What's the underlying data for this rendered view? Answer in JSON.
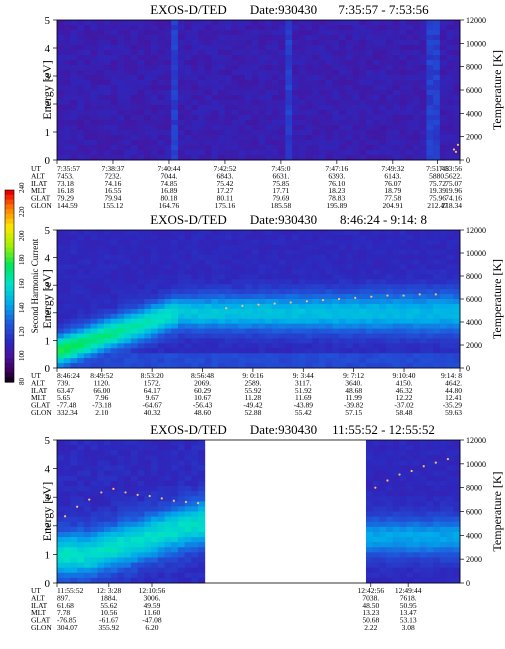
{
  "colorbar": {
    "label": "Second Harmonic Current",
    "ticks": [
      "240",
      "220",
      "200",
      "180",
      "160",
      "140",
      "120",
      "100",
      "80"
    ]
  },
  "chart_data": [
    {
      "type": "heatmap",
      "title": "EXOS-D/TED",
      "date_label": "Date:930430",
      "time_range": "7:35:57 - 7:53:56",
      "ylabel": "Energy [eV]",
      "ylabel_right": "Temperature [K]",
      "yticks": [
        "0",
        "1",
        "2",
        "3",
        "4",
        "5"
      ],
      "yticks_right": [
        "0",
        "2000",
        "4000",
        "6000",
        "8000",
        "10000",
        "12000"
      ],
      "ylim": [
        0,
        5
      ],
      "ylim_right": [
        0,
        12000
      ],
      "intensity_profile": "low",
      "data_gap": null,
      "temperature_points": [
        {
          "x": 0.985,
          "y": 900
        },
        {
          "x": 0.99,
          "y": 700
        },
        {
          "x": 0.995,
          "y": 1300
        }
      ],
      "table": {
        "row_labels": [
          "UT",
          "ALT",
          "ILAT",
          "MLT",
          "GLAT",
          "GLON"
        ],
        "columns": [
          {
            "x": 0.0,
            "values": [
              "7:35:57",
              "7453.",
              "73.18",
              "16.18",
              "79.29",
              "144.59"
            ]
          },
          {
            "x": 0.1389,
            "values": [
              "7:38:37",
              "7232.",
              "74.16",
              "16.55",
              "79.94",
              "155.12"
            ]
          },
          {
            "x": 0.2778,
            "values": [
              "7:40:44",
              "7044.",
              "74.85",
              "16.89",
              "80.18",
              "164.76"
            ]
          },
          {
            "x": 0.4167,
            "values": [
              "7:42:52",
              "6843.",
              "75.42",
              "17.27",
              "80.11",
              "175.16"
            ]
          },
          {
            "x": 0.5556,
            "values": [
              "7:45:0",
              "6631.",
              "75.85",
              "17.71",
              "79.69",
              "185.58"
            ]
          },
          {
            "x": 0.6944,
            "values": [
              "7:47:16",
              "6393.",
              "76.10",
              "18.23",
              "78.83",
              "195.89"
            ]
          },
          {
            "x": 0.8333,
            "values": [
              "7:49:32",
              "6143.",
              "76.07",
              "18.79",
              "77.58",
              "204.91"
            ]
          },
          {
            "x": 0.9444,
            "values": [
              "7:51:48",
              "5880.",
              "75.72",
              "19.39",
              "75.96",
              "212.47"
            ]
          },
          {
            "x": 1.0,
            "values": [
              "7:53:56",
              "5622.",
              "75.07",
              "19.96",
              "74.16",
              "218.34"
            ]
          }
        ]
      }
    },
    {
      "type": "heatmap",
      "title": "EXOS-D/TED",
      "date_label": "Date:930430",
      "time_range": "8:46:24 - 9:14: 8",
      "ylabel": "Energy [eV]",
      "ylabel_right": "Temperature [K]",
      "yticks": [
        "0",
        "1",
        "2",
        "3",
        "4",
        "5"
      ],
      "yticks_right": [
        "0",
        "2000",
        "4000",
        "6000",
        "8000",
        "10000",
        "12000"
      ],
      "ylim": [
        0,
        5
      ],
      "ylim_right": [
        0,
        12000
      ],
      "intensity_profile": "band",
      "data_gap": null,
      "temperature_points": [
        {
          "x": 0.42,
          "y": 5200
        },
        {
          "x": 0.46,
          "y": 5400
        },
        {
          "x": 0.5,
          "y": 5500
        },
        {
          "x": 0.54,
          "y": 5600
        },
        {
          "x": 0.58,
          "y": 5700
        },
        {
          "x": 0.62,
          "y": 5800
        },
        {
          "x": 0.66,
          "y": 5900
        },
        {
          "x": 0.7,
          "y": 6000
        },
        {
          "x": 0.74,
          "y": 6100
        },
        {
          "x": 0.78,
          "y": 6200
        },
        {
          "x": 0.82,
          "y": 6300
        },
        {
          "x": 0.86,
          "y": 6300
        },
        {
          "x": 0.9,
          "y": 6400
        },
        {
          "x": 0.94,
          "y": 6400
        }
      ],
      "table": {
        "row_labels": [
          "UT",
          "ALT",
          "ILAT",
          "MLT",
          "GLAT",
          "GLON"
        ],
        "columns": [
          {
            "x": 0.0,
            "values": [
              "8:46:24",
              "739.",
              "63.47",
              "5.65",
              "-77.48",
              "332.34"
            ]
          },
          {
            "x": 0.1111,
            "values": [
              "8:49:52",
              "1120.",
              "66.00",
              "7.96",
              "-73.18",
              "2.10"
            ]
          },
          {
            "x": 0.2361,
            "values": [
              "8:53:20",
              "1572.",
              "64.17",
              "9.67",
              "-64.67",
              "40.32"
            ]
          },
          {
            "x": 0.3611,
            "values": [
              "8:56:48",
              "2069.",
              "60.29",
              "10.67",
              "-56.43",
              "48.60"
            ]
          },
          {
            "x": 0.4861,
            "values": [
              "9: 0:16",
              "2589.",
              "55.92",
              "11.28",
              "-49.42",
              "52.88"
            ]
          },
          {
            "x": 0.6111,
            "values": [
              "9: 3:44",
              "3117.",
              "51.92",
              "11.69",
              "-43.89",
              "55.42"
            ]
          },
          {
            "x": 0.7361,
            "values": [
              "9: 7:12",
              "3640.",
              "48.68",
              "11.99",
              "-39.82",
              "57.15"
            ]
          },
          {
            "x": 0.8611,
            "values": [
              "9:10:40",
              "4150.",
              "46.32",
              "12.22",
              "-37.02",
              "58.48"
            ]
          },
          {
            "x": 1.0,
            "values": [
              "9:14: 8",
              "4642.",
              "44.80",
              "12.41",
              "-35.29",
              "59.63"
            ]
          }
        ]
      }
    },
    {
      "type": "heatmap",
      "title": "EXOS-D/TED",
      "date_label": "Date:930430",
      "time_range": "11:55:52 - 12:55:52",
      "ylabel": "Energy [eV]",
      "ylabel_right": "Temperature [K]",
      "yticks": [
        "0",
        "1",
        "2",
        "3",
        "4",
        "5"
      ],
      "yticks_right": [
        "0",
        "2000",
        "4000",
        "6000",
        "8000",
        "10000",
        "12000"
      ],
      "ylim": [
        0,
        5
      ],
      "ylim_right": [
        0,
        12000
      ],
      "intensity_profile": "band3",
      "data_gap": [
        0.365,
        0.775
      ],
      "temperature_points": [
        {
          "x": 0.02,
          "y": 5600
        },
        {
          "x": 0.05,
          "y": 6400
        },
        {
          "x": 0.08,
          "y": 7000
        },
        {
          "x": 0.11,
          "y": 7600
        },
        {
          "x": 0.14,
          "y": 7900
        },
        {
          "x": 0.17,
          "y": 7600
        },
        {
          "x": 0.2,
          "y": 7400
        },
        {
          "x": 0.23,
          "y": 7300
        },
        {
          "x": 0.26,
          "y": 7100
        },
        {
          "x": 0.29,
          "y": 6900
        },
        {
          "x": 0.32,
          "y": 6800
        },
        {
          "x": 0.35,
          "y": 6700
        },
        {
          "x": 0.79,
          "y": 8000
        },
        {
          "x": 0.82,
          "y": 8600
        },
        {
          "x": 0.85,
          "y": 9100
        },
        {
          "x": 0.88,
          "y": 9400
        },
        {
          "x": 0.91,
          "y": 9800
        },
        {
          "x": 0.94,
          "y": 10100
        },
        {
          "x": 0.97,
          "y": 10400
        }
      ],
      "table": {
        "row_labels": [
          "UT",
          "ALT",
          "ILAT",
          "MLT",
          "GLAT",
          "GLON"
        ],
        "columns": [
          {
            "x": 0.0,
            "values": [
              "11:55:52",
              "897.",
              "61.68",
              "7.78",
              "-76.85",
              "304.07"
            ]
          },
          {
            "x": 0.1286,
            "values": [
              "12: 3:28",
              "1884.",
              "55.62",
              "10.56",
              "-61.67",
              "355.92"
            ]
          },
          {
            "x": 0.2357,
            "values": [
              "12:10:56",
              "3006.",
              "49.59",
              "11.60",
              "-47.08",
              "6.20"
            ]
          },
          {
            "x": 0.7786,
            "values": [
              "12:42:56",
              "7038.",
              "48.50",
              "13.23",
              "50.68",
              "2.22"
            ]
          },
          {
            "x": 0.8714,
            "values": [
              "12:49:44",
              "7618.",
              "50.95",
              "13.47",
              "53.13",
              "3.08"
            ]
          }
        ]
      }
    }
  ]
}
